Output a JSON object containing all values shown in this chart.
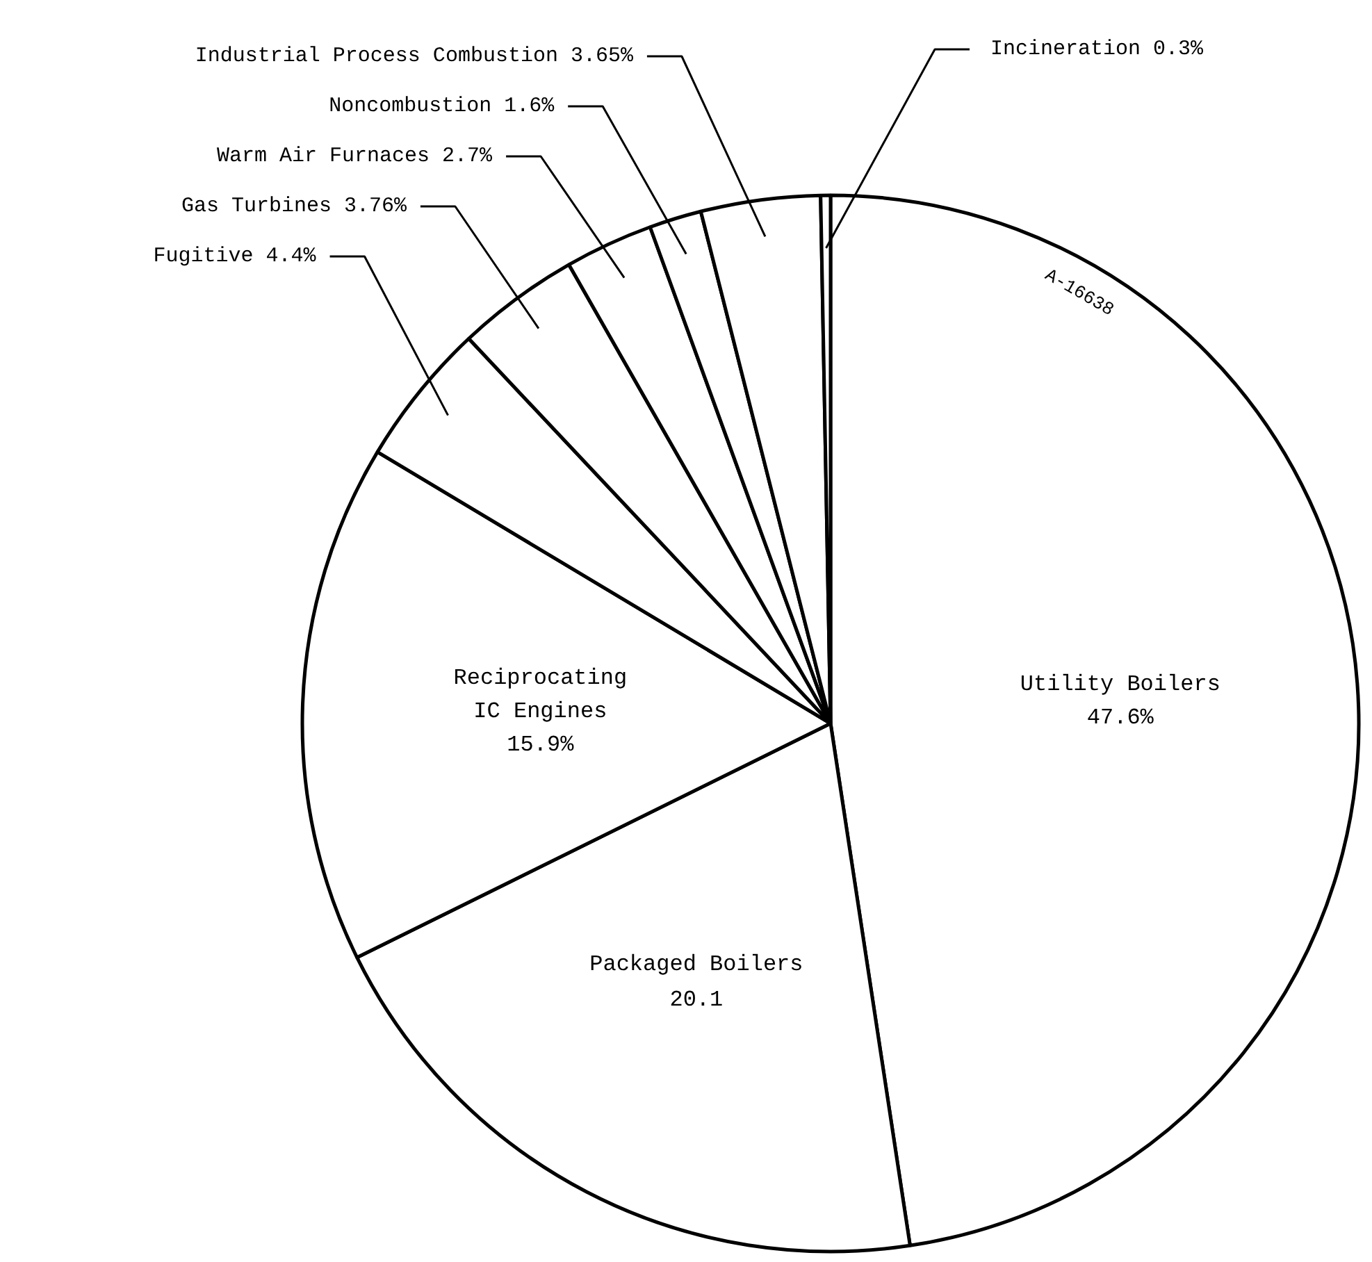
{
  "chart_data": {
    "type": "pie",
    "categories": [
      "Utility Boilers",
      "Packaged Boilers",
      "Reciprocating IC Engines",
      "Fugitive",
      "Gas Turbines",
      "Warm Air Furnaces",
      "Noncombustion",
      "Industrial Process Combustion",
      "Incineration"
    ],
    "values": [
      47.6,
      20.1,
      15.9,
      4.4,
      3.76,
      2.7,
      1.6,
      3.65,
      0.3
    ],
    "value_labels": [
      "47.6%",
      "20.1",
      "15.9%",
      "4.4%",
      "3.76%",
      "2.7%",
      "1.6%",
      "3.65%",
      "0.3%"
    ],
    "colors": [
      "#ffffff",
      "#ffffff",
      "#ffffff",
      "#ffffff",
      "#ffffff",
      "#ffffff",
      "#ffffff",
      "#ffffff",
      "#ffffff"
    ],
    "annotations": [
      "A-16638"
    ]
  }
}
